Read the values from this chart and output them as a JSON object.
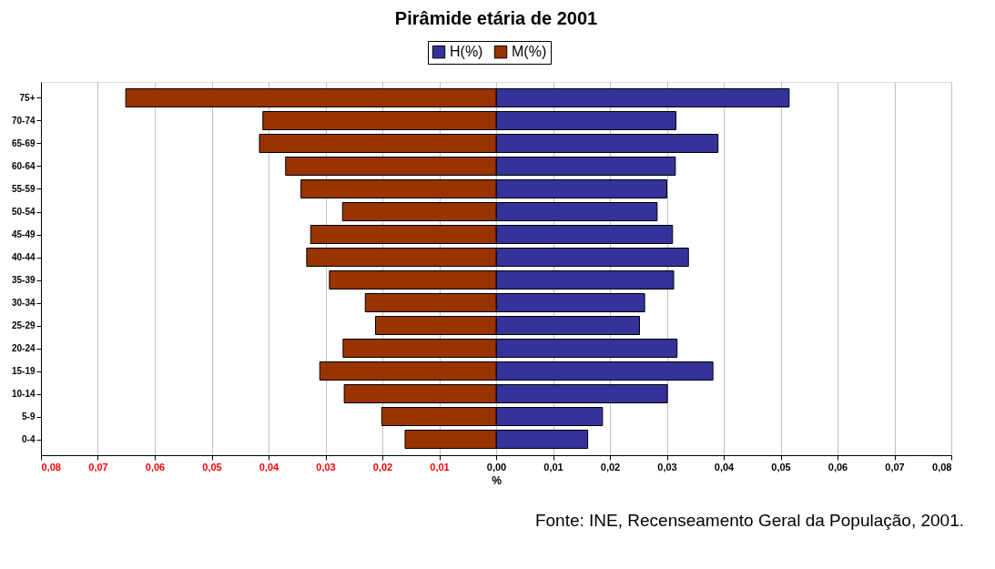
{
  "chart_data": {
    "type": "bar",
    "orientation": "horizontal",
    "title": "Pirâmide etária de 2001",
    "xlabel": "%",
    "categories": [
      "75+",
      "70-74",
      "65-69",
      "60-64",
      "55-59",
      "50-54",
      "45-49",
      "40-44",
      "35-39",
      "30-34",
      "25-29",
      "20-24",
      "15-19",
      "10-14",
      "5-9",
      "0-4"
    ],
    "series": [
      {
        "name": "H(%)",
        "color": "#333399",
        "values": [
          0.0515,
          0.0316,
          0.039,
          0.0315,
          0.03,
          0.0283,
          0.031,
          0.0338,
          0.0312,
          0.0261,
          0.0252,
          0.0318,
          0.0381,
          0.0301,
          0.0187,
          0.0161
        ]
      },
      {
        "name": "M(%)",
        "color": "#993300",
        "values": [
          -0.0651,
          -0.041,
          -0.0416,
          -0.037,
          -0.0343,
          -0.027,
          -0.0326,
          -0.0333,
          -0.0293,
          -0.023,
          -0.0212,
          -0.0269,
          -0.031,
          -0.0267,
          -0.0201,
          -0.016
        ]
      }
    ],
    "xlim": [
      -0.08,
      0.08
    ],
    "xticks": [
      {
        "value": -0.08,
        "label": "0,08"
      },
      {
        "value": -0.07,
        "label": "0,07"
      },
      {
        "value": -0.06,
        "label": "0,06"
      },
      {
        "value": -0.05,
        "label": "0,05"
      },
      {
        "value": -0.04,
        "label": "0,04"
      },
      {
        "value": -0.03,
        "label": "0,03"
      },
      {
        "value": -0.02,
        "label": "0,02"
      },
      {
        "value": -0.01,
        "label": "0,01"
      },
      {
        "value": 0,
        "label": "0,00"
      },
      {
        "value": 0.01,
        "label": "0,01"
      },
      {
        "value": 0.02,
        "label": "0,02"
      },
      {
        "value": 0.03,
        "label": "0,03"
      },
      {
        "value": 0.04,
        "label": "0,04"
      },
      {
        "value": 0.05,
        "label": "0,05"
      },
      {
        "value": 0.06,
        "label": "0,06"
      },
      {
        "value": 0.07,
        "label": "0,07"
      },
      {
        "value": 0.08,
        "label": "0,08"
      }
    ],
    "grid": "x",
    "legend": "top",
    "stacked": true,
    "annotations": [
      "Fonte: INE, Recenseamento Geral da População, 2001."
    ]
  }
}
